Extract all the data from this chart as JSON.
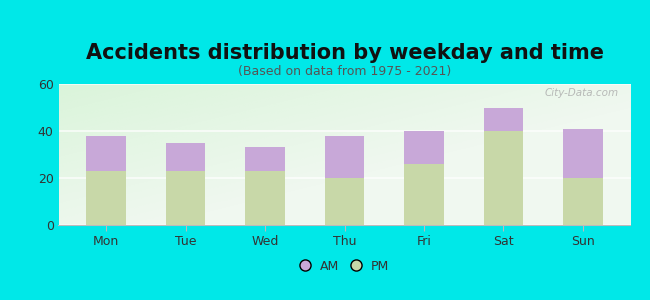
{
  "title": "Accidents distribution by weekday and time",
  "subtitle": "(Based on data from 1975 - 2021)",
  "categories": [
    "Mon",
    "Tue",
    "Wed",
    "Thu",
    "Fri",
    "Sat",
    "Sun"
  ],
  "pm_values": [
    23,
    23,
    23,
    20,
    26,
    40,
    20
  ],
  "am_values": [
    15,
    12,
    10,
    18,
    14,
    10,
    21
  ],
  "am_color": "#c8a8d8",
  "pm_color": "#c8d8a8",
  "background_color": "#00e8e8",
  "ylim": [
    0,
    60
  ],
  "yticks": [
    0,
    20,
    40,
    60
  ],
  "bar_width": 0.5,
  "title_fontsize": 15,
  "subtitle_fontsize": 9,
  "tick_fontsize": 9,
  "legend_fontsize": 9,
  "watermark_text": "City-Data.com"
}
